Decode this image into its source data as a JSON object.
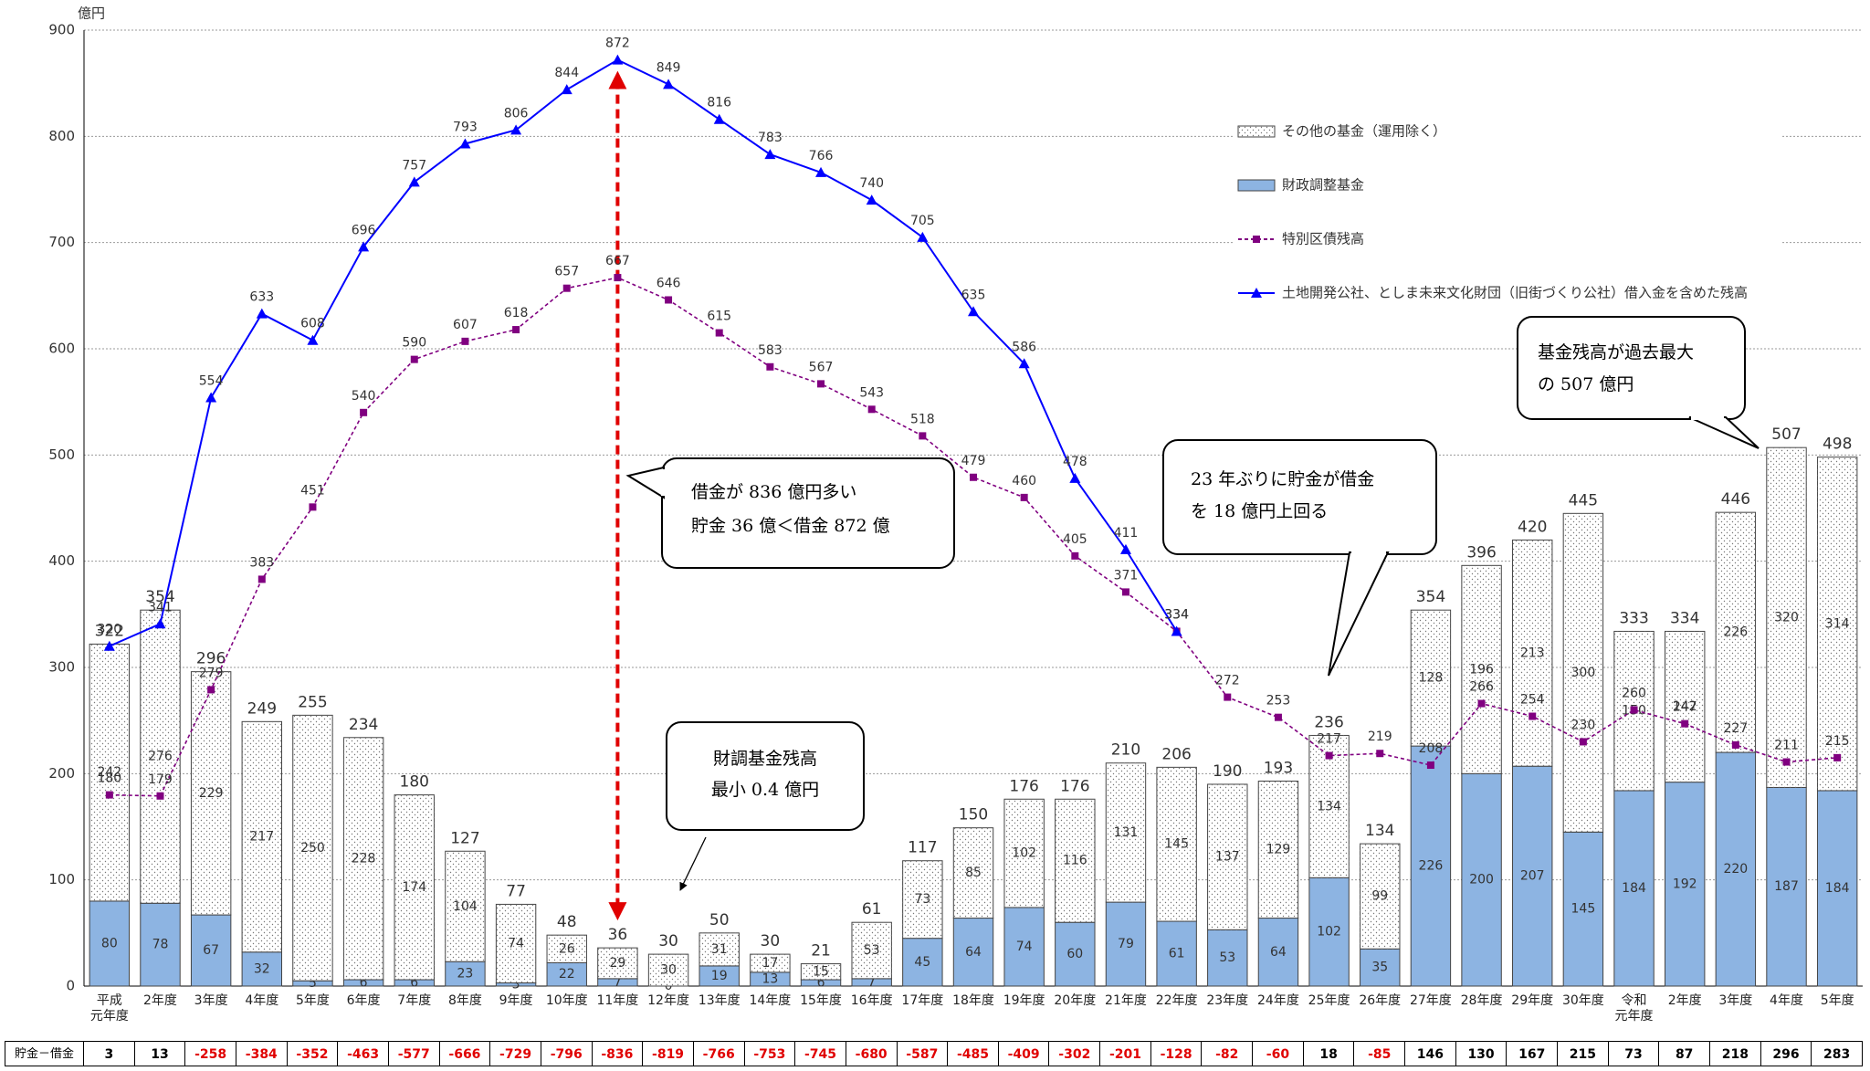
{
  "chart_data": {
    "type": "combo",
    "y_unit": "億円",
    "categories": [
      "平成\n元年度",
      "2年度",
      "3年度",
      "4年度",
      "5年度",
      "6年度",
      "7年度",
      "8年度",
      "9年度",
      "10年度",
      "11年度",
      "12年度",
      "13年度",
      "14年度",
      "15年度",
      "16年度",
      "17年度",
      "18年度",
      "19年度",
      "20年度",
      "21年度",
      "22年度",
      "23年度",
      "24年度",
      "25年度",
      "26年度",
      "27年度",
      "28年度",
      "29年度",
      "30年度",
      "令和\n元年度",
      "2年度",
      "3年度",
      "4年度",
      "5年度"
    ],
    "ylim": [
      0,
      900
    ],
    "yticks": [
      0,
      100,
      200,
      300,
      400,
      500,
      600,
      700,
      800,
      900
    ],
    "grid": true,
    "series": [
      {
        "name": "その他の基金（運用除く）",
        "type": "bar",
        "color": "#ffffff",
        "pattern": "dots",
        "values": [
          242,
          276,
          229,
          217,
          250,
          228,
          174,
          104,
          74,
          26,
          29,
          30,
          31,
          17,
          15,
          53,
          73,
          85,
          102,
          116,
          131,
          145,
          137,
          129,
          134,
          99,
          128,
          196,
          213,
          300,
          150,
          142,
          226,
          320,
          314
        ]
      },
      {
        "name": "財政調整基金",
        "type": "bar",
        "color": "#8db4e2",
        "values": [
          80,
          78,
          67,
          32,
          5,
          6,
          6,
          23,
          3,
          22,
          7,
          0,
          19,
          13,
          6,
          7,
          45,
          64,
          74,
          60,
          79,
          61,
          53,
          64,
          102,
          35,
          226,
          200,
          207,
          145,
          184,
          192,
          220,
          187,
          184
        ]
      },
      {
        "name": "特別区債残高",
        "type": "line",
        "color": "#800080",
        "dash": true,
        "marker": "square",
        "values": [
          180,
          179,
          279,
          383,
          451,
          540,
          590,
          607,
          618,
          657,
          667,
          646,
          615,
          583,
          567,
          543,
          518,
          479,
          460,
          405,
          371,
          334,
          272,
          253,
          217,
          219,
          208,
          266,
          254,
          230,
          260,
          247,
          227,
          211,
          215
        ]
      },
      {
        "name": "土地開発公社、としま未来文化財団（旧街づくり公社）借入金を含めた残高",
        "type": "line",
        "color": "#0000ff",
        "dash": false,
        "marker": "triangle",
        "values": [
          320,
          341,
          554,
          633,
          608,
          696,
          757,
          793,
          806,
          844,
          872,
          849,
          816,
          783,
          766,
          740,
          705,
          635,
          586,
          478,
          411,
          334,
          null,
          null,
          null,
          null,
          null,
          null,
          null,
          null,
          null,
          null,
          null,
          null,
          null
        ]
      }
    ],
    "totals": [
      322,
      354,
      296,
      249,
      255,
      234,
      180,
      127,
      77,
      48,
      36,
      30,
      50,
      30,
      21,
      61,
      117,
      150,
      176,
      176,
      210,
      206,
      190,
      193,
      236,
      134,
      354,
      396,
      420,
      445,
      333,
      334,
      446,
      507,
      498
    ],
    "balance": {
      "label": "貯金－借金",
      "values": [
        3,
        13,
        -258,
        -384,
        -352,
        -463,
        -577,
        -666,
        -729,
        -796,
        -836,
        -819,
        -766,
        -753,
        -745,
        -680,
        -587,
        -485,
        -409,
        -302,
        -201,
        -128,
        -82,
        -60,
        18,
        -85,
        146,
        130,
        167,
        215,
        73,
        87,
        218,
        296,
        283
      ]
    },
    "annotations": [
      {
        "lines": [
          "借金が 836 億円多い",
          "貯金 36 億＜借金 872 億"
        ]
      },
      {
        "lines": [
          "財調基金残高",
          "最小 0.4 億円"
        ]
      },
      {
        "lines": [
          "23 年ぶりに貯金が借金",
          "を 18 億円上回る"
        ]
      },
      {
        "lines": [
          "基金残高が過去最大",
          "の 507 億円"
        ]
      }
    ]
  }
}
